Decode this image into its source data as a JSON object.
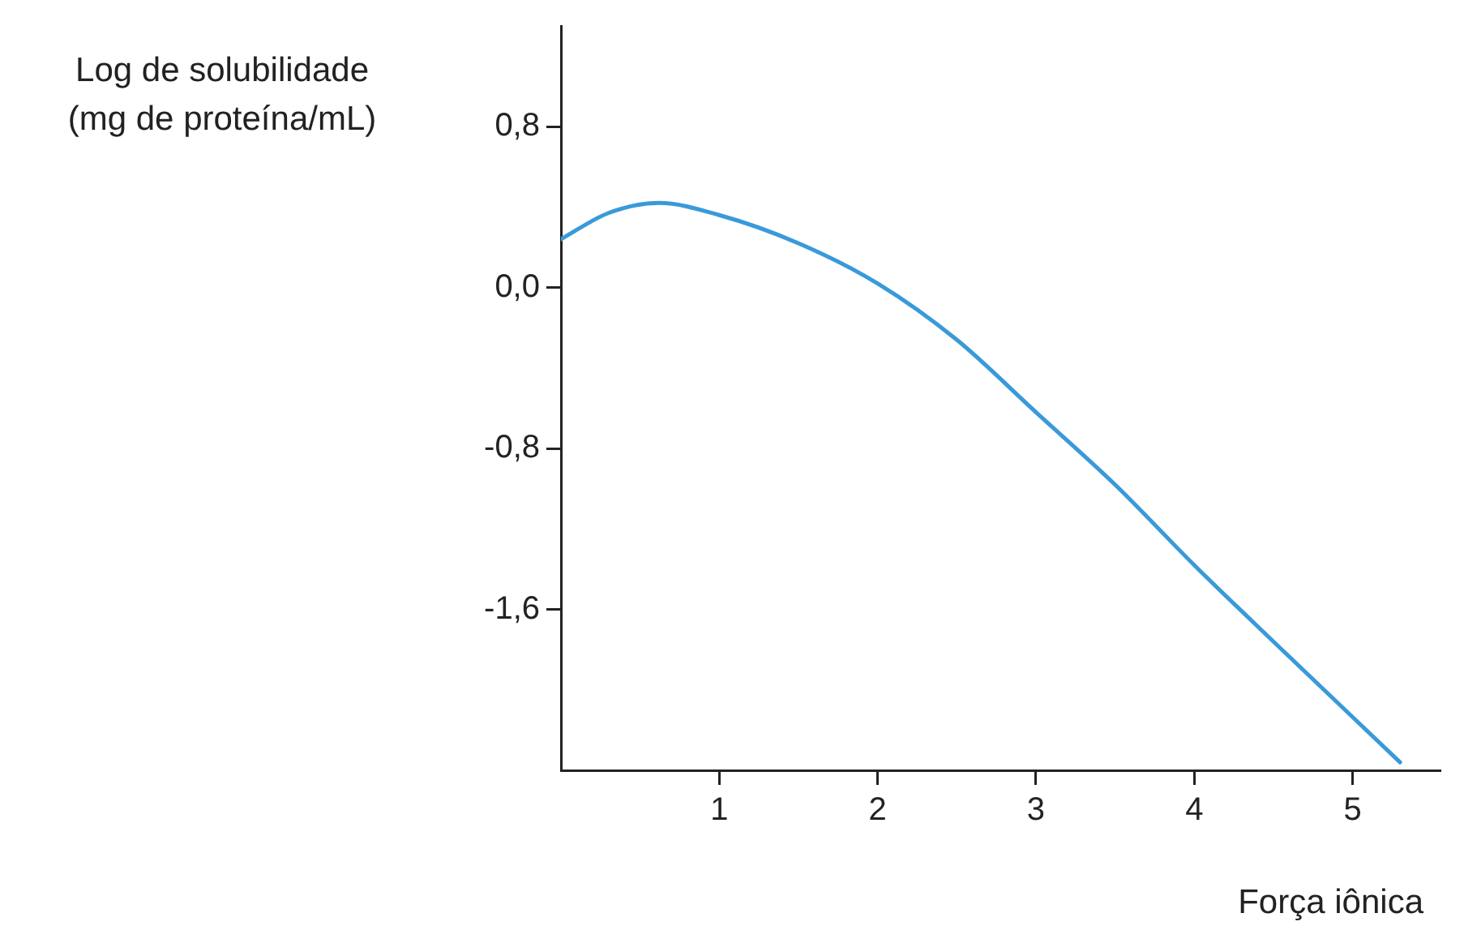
{
  "chart_data": {
    "type": "line",
    "xlabel": "Força iônica",
    "ylabel": "Log de solubilidade (mg de proteína/mL)",
    "x": [
      0,
      0.3,
      0.62,
      1,
      1.5,
      2,
      2.5,
      3,
      3.5,
      4,
      4.5,
      5.3
    ],
    "series": [
      {
        "color": "#3a9ad9",
        "values": [
          0.24,
          0.37,
          0.42,
          0.36,
          0.22,
          0.02,
          -0.26,
          -0.62,
          -0.98,
          -1.38,
          -1.76,
          -2.36
        ]
      }
    ],
    "xlim": [
      0,
      5.55
    ],
    "xticks": [
      1,
      2,
      3,
      4,
      5
    ],
    "ylim": [
      -2.4,
      1.3
    ],
    "yticks": [
      {
        "value": 0.8,
        "label": "0,8"
      },
      {
        "value": 0,
        "label": "0,0"
      },
      {
        "value": -0.8,
        "label": "-0,8"
      },
      {
        "value": -1.6,
        "label": "-1,6"
      }
    ],
    "grid": false,
    "legend": false,
    "marker": "none",
    "line_style": "solid"
  }
}
